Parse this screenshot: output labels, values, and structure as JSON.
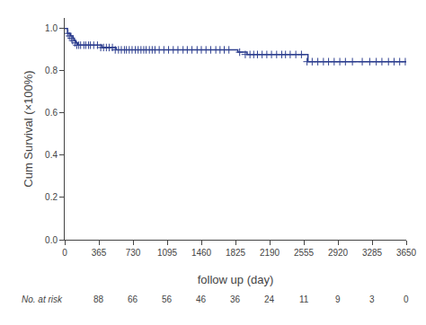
{
  "chart_data": {
    "type": "step",
    "xlabel": "follow up (day)",
    "ylabel": "Cum Survival (×100%)",
    "xlim": [
      0,
      3650
    ],
    "ylim": [
      0.0,
      1.05
    ],
    "xticks": [
      0,
      365,
      730,
      1095,
      1460,
      1825,
      2190,
      2555,
      2920,
      3285,
      3650
    ],
    "yticks": [
      {
        "value": 0.0,
        "label": "0.0"
      },
      0.2,
      0.4,
      0.6,
      0.8,
      {
        "value": 1.0,
        "label": "1.0"
      }
    ],
    "grid": false,
    "series": [
      {
        "type": "step",
        "color": "#2e3f8f",
        "x": [
          0,
          30,
          60,
          90,
          100,
          120,
          140,
          160,
          180,
          200,
          220,
          240,
          260,
          280,
          300,
          340,
          365,
          400,
          430,
          460,
          490,
          520,
          550,
          580,
          610,
          640,
          670,
          700,
          730,
          760,
          790,
          820,
          850,
          880,
          910,
          940,
          970,
          1000,
          1050,
          1100,
          1150,
          1200,
          1250,
          1300,
          1350,
          1400,
          1450,
          1500,
          1550,
          1600,
          1650,
          1700,
          1750,
          1800,
          1825,
          1850,
          1900,
          1950,
          2000,
          2050,
          2100,
          2150,
          2190,
          2200,
          2250,
          2300,
          2350,
          2400,
          2450,
          2500,
          2555,
          2600,
          2650,
          2700,
          2750,
          2800,
          2850,
          2900,
          2920,
          2970,
          3020,
          3100,
          3200,
          3285,
          3350,
          3400,
          3450,
          3500,
          3550,
          3600,
          3650
        ],
        "values": [
          1.0,
          0.977,
          0.965,
          0.954,
          0.943,
          0.932,
          0.921,
          0.921,
          0.921,
          0.921,
          0.921,
          0.921,
          0.921,
          0.921,
          0.921,
          0.921,
          0.921,
          0.91,
          0.91,
          0.91,
          0.91,
          0.91,
          0.899,
          0.899,
          0.899,
          0.899,
          0.899,
          0.899,
          0.899,
          0.899,
          0.899,
          0.899,
          0.899,
          0.899,
          0.899,
          0.899,
          0.899,
          0.899,
          0.899,
          0.899,
          0.899,
          0.899,
          0.899,
          0.899,
          0.899,
          0.899,
          0.899,
          0.899,
          0.899,
          0.899,
          0.899,
          0.899,
          0.899,
          0.899,
          0.899,
          0.888,
          0.888,
          0.877,
          0.877,
          0.877,
          0.877,
          0.877,
          0.877,
          0.877,
          0.877,
          0.877,
          0.877,
          0.877,
          0.877,
          0.877,
          0.877,
          0.843,
          0.843,
          0.843,
          0.843,
          0.843,
          0.843,
          0.843,
          0.843,
          0.843,
          0.843,
          0.843,
          0.843,
          0.843,
          0.843,
          0.843,
          0.843,
          0.843,
          0.843,
          0.843,
          0.843
        ]
      },
      {
        "type": "scatter",
        "marker": "+",
        "color": "#2e3f8f",
        "x": [
          35,
          50,
          70,
          85,
          110,
          130,
          150,
          170,
          205,
          225,
          255,
          275,
          310,
          350,
          385,
          415,
          445,
          475,
          510,
          540,
          575,
          605,
          638,
          660,
          690,
          720,
          755,
          785,
          815,
          845,
          870,
          905,
          935,
          965,
          1010,
          1060,
          1110,
          1160,
          1210,
          1265,
          1310,
          1360,
          1415,
          1460,
          1510,
          1560,
          1615,
          1660,
          1705,
          1755,
          1870,
          1930,
          1980,
          2020,
          2060,
          2110,
          2160,
          2210,
          2265,
          2320,
          2360,
          2410,
          2470,
          2530,
          2590,
          2645,
          2705,
          2765,
          2820,
          2880,
          2940,
          3000,
          3075,
          3180,
          3260,
          3330,
          3390,
          3460,
          3520,
          3580,
          3640
        ],
        "values": [
          0.977,
          0.965,
          0.954,
          0.943,
          0.932,
          0.921,
          0.921,
          0.921,
          0.921,
          0.921,
          0.921,
          0.921,
          0.921,
          0.921,
          0.91,
          0.91,
          0.91,
          0.91,
          0.91,
          0.899,
          0.899,
          0.899,
          0.899,
          0.899,
          0.899,
          0.899,
          0.899,
          0.899,
          0.899,
          0.899,
          0.899,
          0.899,
          0.899,
          0.899,
          0.899,
          0.899,
          0.899,
          0.899,
          0.899,
          0.899,
          0.899,
          0.899,
          0.899,
          0.899,
          0.899,
          0.899,
          0.899,
          0.899,
          0.899,
          0.899,
          0.888,
          0.877,
          0.877,
          0.877,
          0.877,
          0.877,
          0.877,
          0.877,
          0.877,
          0.877,
          0.877,
          0.877,
          0.877,
          0.877,
          0.843,
          0.843,
          0.843,
          0.843,
          0.843,
          0.843,
          0.843,
          0.843,
          0.843,
          0.843,
          0.843,
          0.843,
          0.843,
          0.843,
          0.843,
          0.843,
          0.843
        ]
      }
    ],
    "at_risk": {
      "label": "No. at risk",
      "x": [
        365,
        730,
        1095,
        1460,
        1825,
        2190,
        2555,
        2920,
        3285,
        3650
      ],
      "values": [
        88,
        66,
        56,
        46,
        36,
        24,
        11,
        9,
        3,
        0
      ]
    }
  }
}
